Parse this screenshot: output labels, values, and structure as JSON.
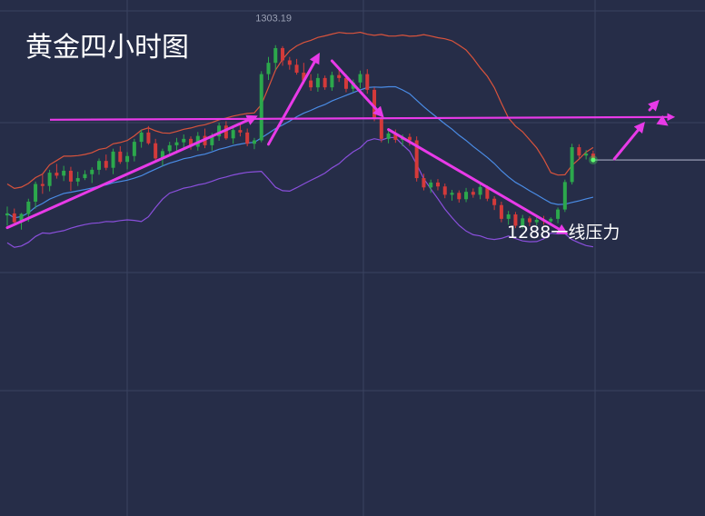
{
  "title": "黄金四小时图",
  "chart_data": {
    "type": "candlestick",
    "peak_label": "1303.19",
    "annotation": "1288一线压力",
    "price_line_color": "#c8cbe0",
    "colors": {
      "background": "#262d48",
      "grid": "#3a4260",
      "up": "#2ca84c",
      "down": "#d43a3a",
      "upper_band": "#d9533c",
      "mid_band": "#4a8ce6",
      "lower_band": "#8a4fdc",
      "arrow": "#e83ae8"
    },
    "candles": [
      [
        1268.5,
        1270.3,
        1266.4,
        1268.9
      ],
      [
        1268.9,
        1269.9,
        1266.7,
        1267.1
      ],
      [
        1267.1,
        1269.0,
        1265.6,
        1268.8
      ],
      [
        1268.8,
        1271.9,
        1267.2,
        1271.3
      ],
      [
        1271.3,
        1275.4,
        1269.9,
        1274.9
      ],
      [
        1274.9,
        1276.8,
        1272.9,
        1274.5
      ],
      [
        1274.5,
        1277.8,
        1273.4,
        1277.2
      ],
      [
        1277.2,
        1279.0,
        1276.0,
        1276.6
      ],
      [
        1276.6,
        1278.6,
        1275.5,
        1277.6
      ],
      [
        1277.6,
        1278.4,
        1273.5,
        1275.4
      ],
      [
        1275.4,
        1277.4,
        1274.5,
        1276.1
      ],
      [
        1276.1,
        1277.7,
        1275.7,
        1276.9
      ],
      [
        1276.9,
        1278.3,
        1275.1,
        1277.8
      ],
      [
        1277.8,
        1280.1,
        1276.8,
        1279.6
      ],
      [
        1279.6,
        1280.9,
        1277.7,
        1278.2
      ],
      [
        1278.2,
        1282.1,
        1276.9,
        1281.5
      ],
      [
        1281.5,
        1282.6,
        1279.0,
        1279.4
      ],
      [
        1279.4,
        1281.4,
        1277.9,
        1280.6
      ],
      [
        1280.6,
        1284.1,
        1279.5,
        1283.5
      ],
      [
        1283.5,
        1286.0,
        1282.3,
        1285.4
      ],
      [
        1285.4,
        1286.7,
        1282.9,
        1283.2
      ],
      [
        1283.2,
        1284.1,
        1279.5,
        1280.1
      ],
      [
        1280.1,
        1282.1,
        1278.6,
        1281.6
      ],
      [
        1281.6,
        1283.5,
        1280.9,
        1282.8
      ],
      [
        1282.8,
        1284.3,
        1281.1,
        1283.4
      ],
      [
        1283.4,
        1285.0,
        1282.0,
        1284.1
      ],
      [
        1284.1,
        1284.6,
        1281.9,
        1282.5
      ],
      [
        1282.5,
        1285.5,
        1281.7,
        1284.7
      ],
      [
        1284.7,
        1286.2,
        1282.2,
        1282.8
      ],
      [
        1282.8,
        1285.3,
        1281.7,
        1284.6
      ],
      [
        1284.6,
        1287.4,
        1283.7,
        1286.8
      ],
      [
        1286.8,
        1287.7,
        1283.9,
        1284.2
      ],
      [
        1284.2,
        1286.3,
        1283.1,
        1285.9
      ],
      [
        1285.9,
        1287.2,
        1284.6,
        1285.4
      ],
      [
        1285.4,
        1286.2,
        1282.6,
        1283.1
      ],
      [
        1283.1,
        1284.3,
        1282.0,
        1283.8
      ],
      [
        1283.8,
        1297.9,
        1283.4,
        1297.3
      ],
      [
        1297.3,
        1300.8,
        1296.1,
        1299.6
      ],
      [
        1299.6,
        1303.2,
        1298.2,
        1302.6
      ],
      [
        1302.6,
        1303.0,
        1299.0,
        1300.1
      ],
      [
        1300.1,
        1300.8,
        1298.2,
        1299.2
      ],
      [
        1299.2,
        1300.4,
        1297.2,
        1297.6
      ],
      [
        1297.6,
        1299.6,
        1295.3,
        1296.0
      ],
      [
        1296.0,
        1297.3,
        1293.9,
        1294.6
      ],
      [
        1294.6,
        1297.4,
        1293.7,
        1296.5
      ],
      [
        1296.5,
        1297.0,
        1294.1,
        1294.6
      ],
      [
        1294.6,
        1297.8,
        1293.9,
        1297.1
      ],
      [
        1297.1,
        1298.6,
        1295.7,
        1296.5
      ],
      [
        1296.5,
        1297.3,
        1293.6,
        1294.3
      ],
      [
        1294.3,
        1296.2,
        1293.7,
        1295.6
      ],
      [
        1295.6,
        1298.0,
        1294.4,
        1297.3
      ],
      [
        1297.3,
        1298.3,
        1293.3,
        1294.1
      ],
      [
        1294.1,
        1294.6,
        1287.7,
        1288.2
      ],
      [
        1288.2,
        1288.7,
        1283.4,
        1284.1
      ],
      [
        1284.1,
        1285.8,
        1283.2,
        1285.2
      ],
      [
        1285.2,
        1286.0,
        1283.3,
        1283.9
      ],
      [
        1283.9,
        1285.0,
        1282.6,
        1284.5
      ],
      [
        1284.5,
        1285.2,
        1282.7,
        1283.8
      ],
      [
        1283.8,
        1284.6,
        1275.4,
        1276.1
      ],
      [
        1276.1,
        1277.0,
        1273.6,
        1274.2
      ],
      [
        1274.2,
        1275.8,
        1273.1,
        1275.2
      ],
      [
        1275.2,
        1275.9,
        1273.6,
        1274.4
      ],
      [
        1274.4,
        1275.0,
        1272.0,
        1272.7
      ],
      [
        1272.7,
        1273.7,
        1271.5,
        1273.1
      ],
      [
        1273.1,
        1273.6,
        1271.1,
        1271.8
      ],
      [
        1271.8,
        1274.1,
        1271.2,
        1273.3
      ],
      [
        1273.3,
        1274.0,
        1272.1,
        1272.7
      ],
      [
        1272.7,
        1274.8,
        1271.8,
        1274.3
      ],
      [
        1274.3,
        1274.6,
        1271.4,
        1271.9
      ],
      [
        1271.9,
        1272.4,
        1269.6,
        1270.6
      ],
      [
        1270.6,
        1271.3,
        1267.1,
        1267.8
      ],
      [
        1267.8,
        1269.4,
        1266.6,
        1268.7
      ],
      [
        1268.7,
        1269.2,
        1265.9,
        1266.4
      ],
      [
        1266.4,
        1268.6,
        1265.8,
        1267.9
      ],
      [
        1267.9,
        1268.3,
        1266.3,
        1267.1
      ],
      [
        1267.1,
        1268.2,
        1266.5,
        1267.6
      ],
      [
        1267.6,
        1268.4,
        1266.6,
        1267.3
      ],
      [
        1267.3,
        1268.1,
        1266.7,
        1267.8
      ],
      [
        1267.8,
        1270.1,
        1266.9,
        1269.7
      ],
      [
        1269.7,
        1275.8,
        1269.2,
        1275.3
      ],
      [
        1275.3,
        1283.1,
        1274.8,
        1282.4
      ],
      [
        1282.4,
        1283.0,
        1280.2,
        1280.7
      ],
      [
        1280.7,
        1281.8,
        1279.9,
        1281.1
      ],
      [
        1281.1,
        1281.7,
        1279.3,
        1279.8
      ]
    ]
  }
}
